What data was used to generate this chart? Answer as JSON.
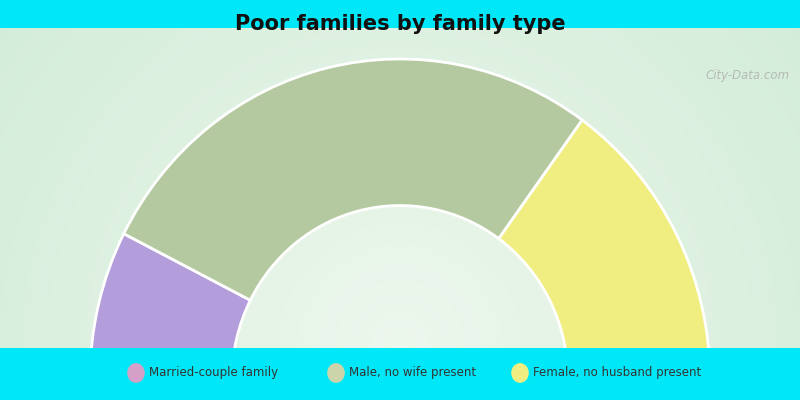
{
  "title": "Poor families by family type",
  "title_fontsize": 15,
  "background_cyan": "#00e8f8",
  "segments": [
    {
      "label": "Married-couple family",
      "value": 15,
      "color": "#b39ddb"
    },
    {
      "label": "Male, no wife present",
      "value": 55,
      "color": "#b5c9a0"
    },
    {
      "label": "Female, no husband present",
      "value": 30,
      "color": "#f0ee80"
    }
  ],
  "legend_marker_colors": [
    "#d4a0c8",
    "#ccd4aa",
    "#f0ee80"
  ],
  "watermark": "City-Data.com"
}
